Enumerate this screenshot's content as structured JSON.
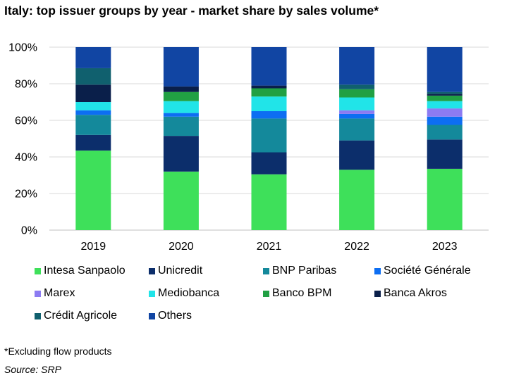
{
  "chart_data": {
    "type": "bar",
    "stacked": true,
    "title": "Italy: top issuer groups by year - market share by sales volume*",
    "categories": [
      "2019",
      "2020",
      "2021",
      "2022",
      "2023"
    ],
    "ylim": [
      0,
      100
    ],
    "yticks": [
      "0%",
      "20%",
      "40%",
      "60%",
      "80%",
      "100%"
    ],
    "grid": true,
    "legend_position": "bottom",
    "series": [
      {
        "name": "Intesa Sanpaolo",
        "color": "#3ee05a",
        "values": [
          43.5,
          32,
          30.5,
          33,
          33.5
        ]
      },
      {
        "name": "Unicredit",
        "color": "#0c2e6b",
        "values": [
          8.5,
          19.5,
          12,
          16,
          16
        ]
      },
      {
        "name": "BNP Paribas",
        "color": "#14899b",
        "values": [
          11,
          10.5,
          18.5,
          12,
          8
        ]
      },
      {
        "name": "Société Générale",
        "color": "#0d6ef2",
        "values": [
          2.5,
          2,
          4,
          2.5,
          4.5
        ]
      },
      {
        "name": "Marex",
        "color": "#8c7bf2",
        "values": [
          0,
          0,
          0,
          2,
          4.5
        ]
      },
      {
        "name": "Mediobanca",
        "color": "#21e4e8",
        "values": [
          4.5,
          6.5,
          8,
          7,
          4
        ]
      },
      {
        "name": "Banco BPM",
        "color": "#21a043",
        "values": [
          0,
          5,
          4.5,
          4.5,
          3
        ]
      },
      {
        "name": "Banca Akros",
        "color": "#0a1f4a",
        "values": [
          9.5,
          3,
          1.5,
          0,
          1
        ]
      },
      {
        "name": "Crédit Agricole",
        "color": "#10606e",
        "values": [
          9,
          0,
          0,
          2.5,
          1
        ]
      },
      {
        "name": "Others",
        "color": "#1145a3",
        "values": [
          11.5,
          21.5,
          21,
          20.5,
          24.5
        ]
      }
    ]
  },
  "legend": {
    "items": [
      "Intesa Sanpaolo",
      "Unicredit",
      "BNP Paribas",
      "Société Générale",
      "Marex",
      "Mediobanca",
      "Banco BPM",
      "Banca Akros",
      "Crédit Agricole",
      "Others"
    ]
  },
  "notes": {
    "footnote": "*Excluding flow products",
    "source": "Source: SRP"
  }
}
